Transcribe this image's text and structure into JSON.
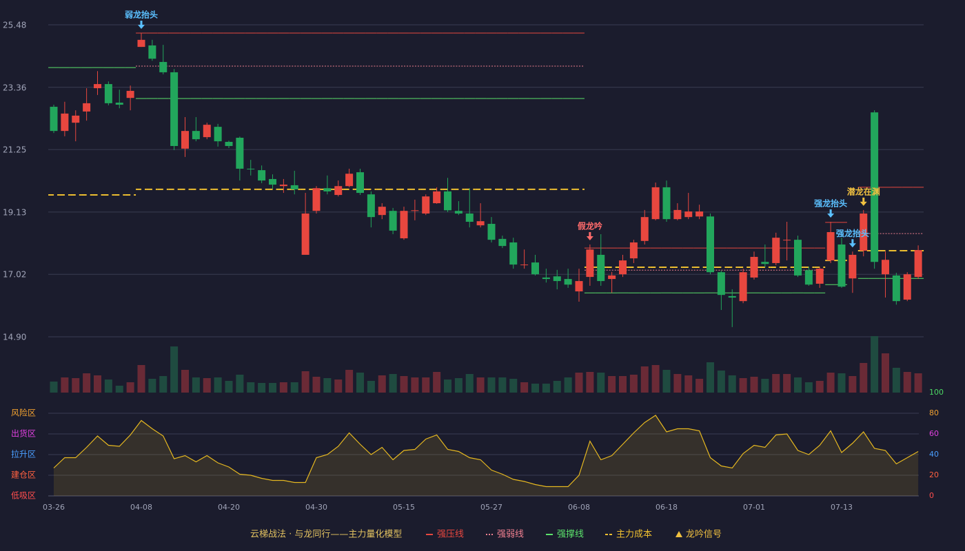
{
  "chart_data": {
    "type": "candlestick",
    "categories": [
      "03-26",
      null,
      null,
      null,
      null,
      null,
      null,
      null,
      "04-08",
      null,
      null,
      null,
      null,
      null,
      null,
      null,
      "04-20",
      null,
      null,
      null,
      null,
      null,
      null,
      null,
      "04-30",
      null,
      null,
      null,
      null,
      null,
      null,
      null,
      "05-15",
      null,
      null,
      null,
      null,
      null,
      null,
      null,
      "05-27",
      null,
      null,
      null,
      null,
      null,
      null,
      null,
      "06-08",
      null,
      null,
      null,
      null,
      null,
      null,
      null,
      "06-18",
      null,
      null,
      null,
      null,
      null,
      null,
      null,
      "07-01",
      null,
      null,
      null,
      null,
      null,
      null,
      null,
      "07-13",
      null,
      null,
      null,
      null,
      null,
      null,
      null
    ],
    "open": [
      22.7,
      21.88,
      22.16,
      22.54,
      23.33,
      23.47,
      22.84,
      23.0,
      24.73,
      24.78,
      24.22,
      23.87,
      21.28,
      21.88,
      21.67,
      22.02,
      21.51,
      21.65,
      20.6,
      20.55,
      20.25,
      20.01,
      20.04,
      17.68,
      19.17,
      19.94,
      19.71,
      20.01,
      20.48,
      19.73,
      19.03,
      19.17,
      18.24,
      19.17,
      19.08,
      19.43,
      19.83,
      19.17,
      19.08,
      18.68,
      18.73,
      18.22,
      18.1,
      17.33,
      17.42,
      16.91,
      16.95,
      16.86,
      16.44,
      16.93,
      17.68,
      16.86,
      17.02,
      17.56,
      18.15,
      18.89,
      19.97,
      18.89,
      18.96,
      18.98,
      18.98,
      17.09,
      16.28,
      16.11,
      16.91,
      17.44,
      17.4,
      18.17,
      18.19,
      17.16,
      16.7,
      17.49,
      18.03,
      16.88,
      17.82,
      22.51,
      17.02,
      16.98,
      16.16,
      16.93
    ],
    "high": [
      22.77,
      22.87,
      22.58,
      23.33,
      23.91,
      23.56,
      23.28,
      23.42,
      25.2,
      24.97,
      24.8,
      23.98,
      22.35,
      22.35,
      22.16,
      22.12,
      21.55,
      21.69,
      20.9,
      20.71,
      20.41,
      20.25,
      20.53,
      19.78,
      20.01,
      20.37,
      20.2,
      20.6,
      20.6,
      19.83,
      19.43,
      19.27,
      19.31,
      19.55,
      19.73,
      19.97,
      20.29,
      19.5,
      19.94,
      19.43,
      18.96,
      18.33,
      18.26,
      17.86,
      17.68,
      17.21,
      17.17,
      17.21,
      17.21,
      18.03,
      18.38,
      17.1,
      17.68,
      18.19,
      19.2,
      20.13,
      20.2,
      19.43,
      19.78,
      19.38,
      19.08,
      17.14,
      16.51,
      17.21,
      17.79,
      18.03,
      18.43,
      18.8,
      18.33,
      17.28,
      17.26,
      18.8,
      18.26,
      17.79,
      19.2,
      22.58,
      17.79,
      17.07,
      17.09,
      18.0
    ],
    "low": [
      21.81,
      21.7,
      21.53,
      22.23,
      23.1,
      22.75,
      22.65,
      22.58,
      24.73,
      24.26,
      23.8,
      21.23,
      21.0,
      21.53,
      21.6,
      21.35,
      21.3,
      20.2,
      20.37,
      20.11,
      19.92,
      19.78,
      19.73,
      17.68,
      19.08,
      19.73,
      19.66,
      19.97,
      19.71,
      18.61,
      18.89,
      18.38,
      18.19,
      18.85,
      19.03,
      19.41,
      19.13,
      19.03,
      18.61,
      18.61,
      18.1,
      17.91,
      17.21,
      17.21,
      16.98,
      16.74,
      16.51,
      16.56,
      16.09,
      16.63,
      16.63,
      16.39,
      16.93,
      17.4,
      18.03,
      18.85,
      18.8,
      18.85,
      18.89,
      18.89,
      17.02,
      15.81,
      15.23,
      16.04,
      16.84,
      17.26,
      17.33,
      17.49,
      16.93,
      16.63,
      16.56,
      17.4,
      16.56,
      16.39,
      17.63,
      17.21,
      16.23,
      15.99,
      16.11,
      16.86
    ],
    "close": [
      21.88,
      22.47,
      22.4,
      22.82,
      23.47,
      22.82,
      22.77,
      23.24,
      24.97,
      24.33,
      23.87,
      21.37,
      21.88,
      21.6,
      22.09,
      21.53,
      21.37,
      20.6,
      20.58,
      20.2,
      20.06,
      20.06,
      19.9,
      19.08,
      19.94,
      19.83,
      20.01,
      20.43,
      19.78,
      18.96,
      19.31,
      18.5,
      19.17,
      19.19,
      19.66,
      19.83,
      19.19,
      19.08,
      18.8,
      18.82,
      18.19,
      17.98,
      17.35,
      17.35,
      17.02,
      16.86,
      16.79,
      16.67,
      16.79,
      17.86,
      16.79,
      16.98,
      17.49,
      18.1,
      18.96,
      19.97,
      18.89,
      19.2,
      19.15,
      19.15,
      17.09,
      16.32,
      16.23,
      17.09,
      17.61,
      17.37,
      18.26,
      18.19,
      16.98,
      16.67,
      17.21,
      18.45,
      16.6,
      17.68,
      19.08,
      17.44,
      17.51,
      16.11,
      17.02,
      17.84
    ],
    "volume": [
      16,
      22,
      21,
      28,
      25,
      19,
      10,
      15,
      40,
      20,
      24,
      67,
      33,
      22,
      21,
      22,
      17,
      26,
      15,
      14,
      14,
      15,
      15,
      31,
      23,
      21,
      19,
      33,
      29,
      17,
      25,
      27,
      24,
      22,
      22,
      30,
      19,
      21,
      27,
      22,
      22,
      22,
      20,
      15,
      13,
      13,
      17,
      22,
      29,
      30,
      29,
      24,
      24,
      26,
      38,
      40,
      33,
      27,
      25,
      20,
      44,
      32,
      25,
      21,
      23,
      20,
      27,
      27,
      22,
      15,
      17,
      29,
      28,
      24,
      43,
      82,
      57,
      36,
      30,
      28
    ],
    "up_color": "#e8473f",
    "down_color": "#22a65c",
    "up_volume_color": "#6a2a36",
    "down_volume_color": "#1f4b40",
    "ylim": [
      14.9,
      25.48
    ],
    "yticks": [
      {
        "value": 14.9,
        "label": "14.90"
      },
      17.02,
      19.13,
      21.25,
      23.36,
      25.48
    ],
    "series": [
      {
        "name": "强压线",
        "color": "#e8473f",
        "dash": "solid",
        "values": [
          null,
          null,
          null,
          null,
          null,
          null,
          null,
          null,
          25.2,
          25.2,
          25.2,
          25.2,
          25.2,
          25.2,
          25.2,
          25.2,
          25.2,
          25.2,
          25.2,
          25.2,
          25.2,
          25.2,
          25.2,
          25.2,
          25.2,
          25.2,
          25.2,
          25.2,
          25.2,
          25.2,
          25.2,
          25.2,
          25.2,
          25.2,
          25.2,
          25.2,
          25.2,
          25.2,
          25.2,
          25.2,
          25.2,
          25.2,
          25.2,
          25.2,
          25.2,
          25.2,
          25.2,
          25.2,
          25.2,
          17.91,
          17.91,
          17.91,
          17.91,
          17.91,
          17.91,
          17.91,
          17.91,
          17.91,
          17.91,
          17.91,
          17.91,
          17.91,
          17.91,
          17.91,
          17.91,
          17.91,
          17.91,
          17.91,
          17.91,
          17.91,
          17.91,
          18.78,
          18.78,
          null,
          19.97,
          19.97,
          19.97,
          19.97,
          19.97,
          19.97
        ]
      },
      {
        "name": "强弱线",
        "color": "#f08090",
        "dash": "dotted",
        "values": [
          null,
          null,
          null,
          null,
          null,
          null,
          null,
          null,
          24.08,
          24.08,
          24.08,
          24.08,
          24.08,
          24.08,
          24.08,
          24.08,
          24.08,
          24.08,
          24.08,
          24.08,
          24.08,
          24.08,
          24.08,
          24.08,
          24.08,
          24.08,
          24.08,
          24.08,
          24.08,
          24.08,
          24.08,
          24.08,
          24.08,
          24.08,
          24.08,
          24.08,
          24.08,
          24.08,
          24.08,
          24.08,
          24.08,
          24.08,
          24.08,
          24.08,
          24.08,
          24.08,
          24.08,
          24.08,
          24.08,
          17.16,
          17.16,
          17.16,
          17.16,
          17.16,
          17.16,
          17.16,
          17.16,
          17.16,
          17.16,
          17.16,
          17.16,
          17.16,
          17.16,
          17.16,
          17.16,
          17.16,
          17.16,
          17.16,
          17.16,
          17.16,
          17.16,
          null,
          null,
          null,
          18.4,
          18.4,
          18.4,
          18.4,
          18.4,
          18.4
        ]
      },
      {
        "name": "强撑线",
        "color": "#5be26b",
        "dash": "solid",
        "values": [
          24.03,
          24.03,
          24.03,
          24.03,
          24.03,
          24.03,
          24.03,
          24.03,
          22.98,
          22.98,
          22.98,
          22.98,
          22.98,
          22.98,
          22.98,
          22.98,
          22.98,
          22.98,
          22.98,
          22.98,
          22.98,
          22.98,
          22.98,
          22.98,
          22.98,
          22.98,
          22.98,
          22.98,
          22.98,
          22.98,
          22.98,
          22.98,
          22.98,
          22.98,
          22.98,
          22.98,
          22.98,
          22.98,
          22.98,
          22.98,
          22.98,
          22.98,
          22.98,
          22.98,
          22.98,
          22.98,
          22.98,
          22.98,
          22.98,
          16.39,
          16.39,
          16.39,
          16.39,
          16.39,
          16.39,
          16.39,
          16.39,
          16.39,
          16.39,
          16.39,
          16.39,
          16.39,
          16.39,
          16.39,
          16.39,
          16.39,
          16.39,
          16.39,
          16.39,
          16.39,
          16.39,
          16.67,
          16.67,
          null,
          16.88,
          16.88,
          16.88,
          16.88,
          16.88,
          16.88
        ]
      },
      {
        "name": "主力成本",
        "color": "#f0c030",
        "dash": "dashed",
        "values": [
          19.71,
          19.71,
          19.71,
          19.71,
          19.71,
          19.71,
          19.71,
          19.71,
          19.9,
          19.9,
          19.9,
          19.9,
          19.9,
          19.9,
          19.9,
          19.9,
          19.9,
          19.9,
          19.9,
          19.9,
          19.9,
          19.9,
          19.9,
          19.9,
          19.9,
          19.9,
          19.9,
          19.9,
          19.9,
          19.9,
          19.9,
          19.9,
          19.9,
          19.9,
          19.9,
          19.9,
          19.9,
          19.9,
          19.9,
          19.9,
          19.9,
          19.9,
          19.9,
          19.9,
          19.9,
          19.9,
          19.9,
          19.9,
          19.9,
          17.26,
          17.26,
          17.26,
          17.26,
          17.26,
          17.26,
          17.26,
          17.26,
          17.26,
          17.26,
          17.26,
          17.26,
          17.26,
          17.26,
          17.26,
          17.26,
          17.26,
          17.26,
          17.26,
          17.26,
          17.26,
          17.26,
          17.49,
          17.49,
          null,
          17.82,
          17.82,
          17.82,
          17.82,
          17.82,
          17.82
        ]
      }
    ],
    "signals": [
      {
        "index": 8,
        "label": "弱龙抬头",
        "color": "#5bc0ff"
      },
      {
        "index": 49,
        "label": "假龙吟",
        "color": "#ff6b6b"
      },
      {
        "index": 71,
        "label": "强龙抬头",
        "color": "#5bc0ff"
      },
      {
        "index": 73,
        "label": "强龙抬头",
        "color": "#5bc0ff"
      },
      {
        "index": 74,
        "label": "潜龙在渊",
        "color": "#f0c040"
      }
    ],
    "signal_legend": "龙吟信号",
    "legend_title": "云梯战法 · 与龙同行——主力量化模型",
    "oscillator": {
      "values": [
        27,
        37,
        37,
        47,
        58,
        49,
        48,
        59,
        73,
        65,
        58,
        36,
        39,
        33,
        39,
        32,
        28,
        21,
        20,
        17,
        15,
        15,
        13,
        13,
        37,
        40,
        48,
        61,
        50,
        40,
        47,
        35,
        44,
        45,
        55,
        59,
        45,
        43,
        37,
        35,
        25,
        21,
        16,
        14,
        11,
        9,
        9,
        9,
        20,
        53,
        35,
        39,
        50,
        61,
        71,
        78,
        62,
        65,
        65,
        63,
        37,
        29,
        27,
        41,
        49,
        47,
        59,
        60,
        44,
        40,
        49,
        63,
        42,
        51,
        62,
        46,
        44,
        31,
        37,
        43
      ],
      "color": "#e6b820",
      "ylim": [
        0,
        100
      ],
      "yticks": [
        0,
        20,
        40,
        60,
        80,
        100
      ],
      "tick_colors": [
        "#ff4d4d",
        "#ff6040",
        "#4a9eff",
        "#e040e0",
        "#f0a030",
        "#4cd964"
      ],
      "zones": [
        {
          "label": "风险区",
          "value": 80,
          "color": "#f0a030"
        },
        {
          "label": "出货区",
          "value": 60,
          "color": "#e040e0"
        },
        {
          "label": "拉升区",
          "value": 40,
          "color": "#4a9eff"
        },
        {
          "label": "建仓区",
          "value": 20,
          "color": "#ff6040"
        },
        {
          "label": "低吸区",
          "value": 0,
          "color": "#ff4d4d"
        }
      ]
    }
  }
}
